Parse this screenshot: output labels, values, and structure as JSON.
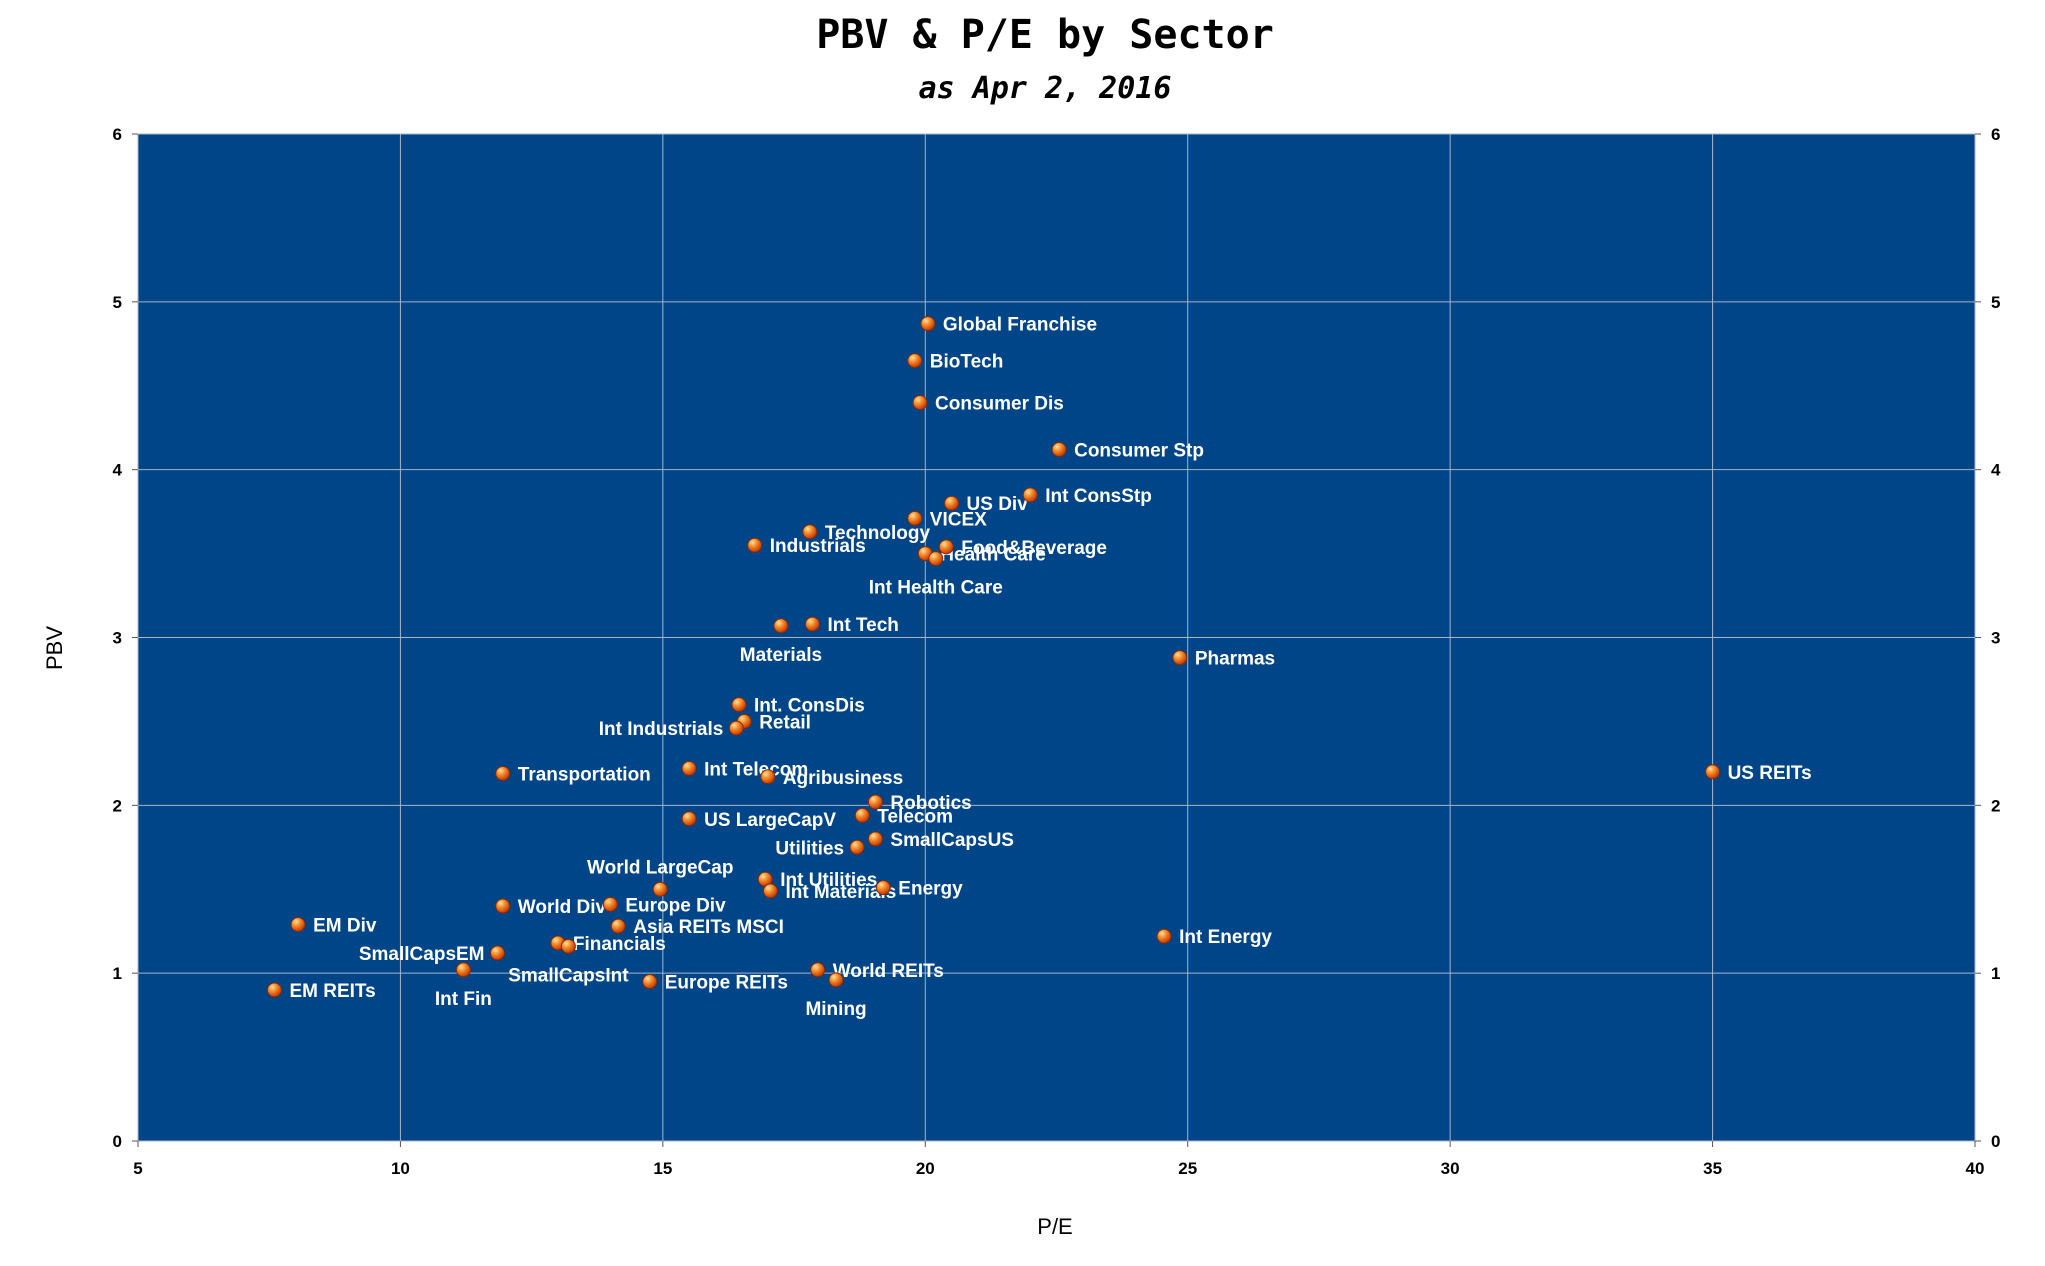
{
  "chart_data": {
    "type": "scatter",
    "title": "PBV & P/E by Sector",
    "subtitle": "as Apr 2, 2016",
    "xlabel": "P/E",
    "ylabel": "PBV",
    "xlim": [
      5,
      40
    ],
    "ylim": [
      0,
      6
    ],
    "xticks": [
      "5",
      "10",
      "15",
      "20",
      "25",
      "30",
      "35",
      "40"
    ],
    "yticks": [
      "0",
      "1",
      "2",
      "3",
      "4",
      "5",
      "6"
    ],
    "secondary_y_axis": true,
    "grid": true,
    "colors": {
      "plot_background": "#004587",
      "marker": "#f47a20",
      "marker_highlight": "#ffd27a",
      "label": "#ffffff"
    },
    "points": [
      {
        "name": "Global Franchise",
        "x": 20.05,
        "y": 4.87,
        "label_side": "right"
      },
      {
        "name": "BioTech",
        "x": 19.8,
        "y": 4.65,
        "label_side": "right"
      },
      {
        "name": "Consumer Dis",
        "x": 19.9,
        "y": 4.4,
        "label_side": "right"
      },
      {
        "name": "Consumer Stp",
        "x": 22.55,
        "y": 4.12,
        "label_side": "right"
      },
      {
        "name": "Int ConsStp",
        "x": 22.0,
        "y": 3.85,
        "label_side": "right"
      },
      {
        "name": "US Div",
        "x": 20.5,
        "y": 3.8,
        "label_side": "right"
      },
      {
        "name": "VICEX",
        "x": 19.8,
        "y": 3.71,
        "label_side": "right"
      },
      {
        "name": "Technology",
        "x": 17.8,
        "y": 3.63,
        "label_side": "right"
      },
      {
        "name": "Industrials",
        "x": 16.75,
        "y": 3.55,
        "label_side": "right"
      },
      {
        "name": "Food&Beverage",
        "x": 20.4,
        "y": 3.54,
        "label_side": "right"
      },
      {
        "name": "Health Care",
        "x": 20.0,
        "y": 3.5,
        "label_side": "right"
      },
      {
        "name": "Int Health Care",
        "x": 20.2,
        "y": 3.47,
        "label_side": "below"
      },
      {
        "name": "Int Tech",
        "x": 17.85,
        "y": 3.08,
        "label_side": "right"
      },
      {
        "name": "Materials",
        "x": 17.25,
        "y": 3.07,
        "label_side": "below"
      },
      {
        "name": "Pharmas",
        "x": 24.85,
        "y": 2.88,
        "label_side": "right"
      },
      {
        "name": "Int. ConsDis",
        "x": 16.45,
        "y": 2.6,
        "label_side": "right"
      },
      {
        "name": "Retail",
        "x": 16.55,
        "y": 2.5,
        "label_side": "right"
      },
      {
        "name": "Int Industrials",
        "x": 16.4,
        "y": 2.46,
        "label_side": "left"
      },
      {
        "name": "US REITs",
        "x": 35.0,
        "y": 2.2,
        "label_side": "right"
      },
      {
        "name": "Transportation",
        "x": 11.95,
        "y": 2.19,
        "label_side": "right"
      },
      {
        "name": "Int Telecom",
        "x": 15.5,
        "y": 2.22,
        "label_side": "right"
      },
      {
        "name": "Agribusiness",
        "x": 17.0,
        "y": 2.17,
        "label_side": "right"
      },
      {
        "name": "Robotics",
        "x": 19.05,
        "y": 2.02,
        "label_side": "right"
      },
      {
        "name": "Telecom",
        "x": 18.8,
        "y": 1.94,
        "label_side": "right"
      },
      {
        "name": "US LargeCapV",
        "x": 15.5,
        "y": 1.92,
        "label_side": "right"
      },
      {
        "name": "SmallCapsUS",
        "x": 19.05,
        "y": 1.8,
        "label_side": "right"
      },
      {
        "name": "Utilities",
        "x": 18.7,
        "y": 1.75,
        "label_side": "left"
      },
      {
        "name": "World LargeCap",
        "x": 14.95,
        "y": 1.5,
        "label_side": "above"
      },
      {
        "name": "Int Utilities",
        "x": 16.95,
        "y": 1.56,
        "label_side": "right"
      },
      {
        "name": "Energy",
        "x": 19.2,
        "y": 1.51,
        "label_side": "right"
      },
      {
        "name": "Int Materials",
        "x": 17.05,
        "y": 1.49,
        "label_side": "right"
      },
      {
        "name": "World Div",
        "x": 11.95,
        "y": 1.4,
        "label_side": "right"
      },
      {
        "name": "Europe Div",
        "x": 14.0,
        "y": 1.41,
        "label_side": "right"
      },
      {
        "name": "EM Div",
        "x": 8.05,
        "y": 1.29,
        "label_side": "right"
      },
      {
        "name": "Asia REITs MSCI",
        "x": 14.15,
        "y": 1.28,
        "label_side": "right"
      },
      {
        "name": "Int Energy",
        "x": 24.55,
        "y": 1.22,
        "label_side": "right"
      },
      {
        "name": "Financials",
        "x": 13.0,
        "y": 1.18,
        "label_side": "right"
      },
      {
        "name": "SmallCapsEM",
        "x": 11.85,
        "y": 1.12,
        "label_side": "left"
      },
      {
        "name": "SmallCapsInt",
        "x": 13.2,
        "y": 1.16,
        "label_side": "below"
      },
      {
        "name": "Int Fin",
        "x": 11.2,
        "y": 1.02,
        "label_side": "below"
      },
      {
        "name": "World REITs",
        "x": 17.95,
        "y": 1.02,
        "label_side": "right"
      },
      {
        "name": "Mining",
        "x": 18.3,
        "y": 0.96,
        "label_side": "below"
      },
      {
        "name": "Europe REITs",
        "x": 14.75,
        "y": 0.95,
        "label_side": "right"
      },
      {
        "name": "EM REITs",
        "x": 7.6,
        "y": 0.9,
        "label_side": "right"
      }
    ]
  }
}
